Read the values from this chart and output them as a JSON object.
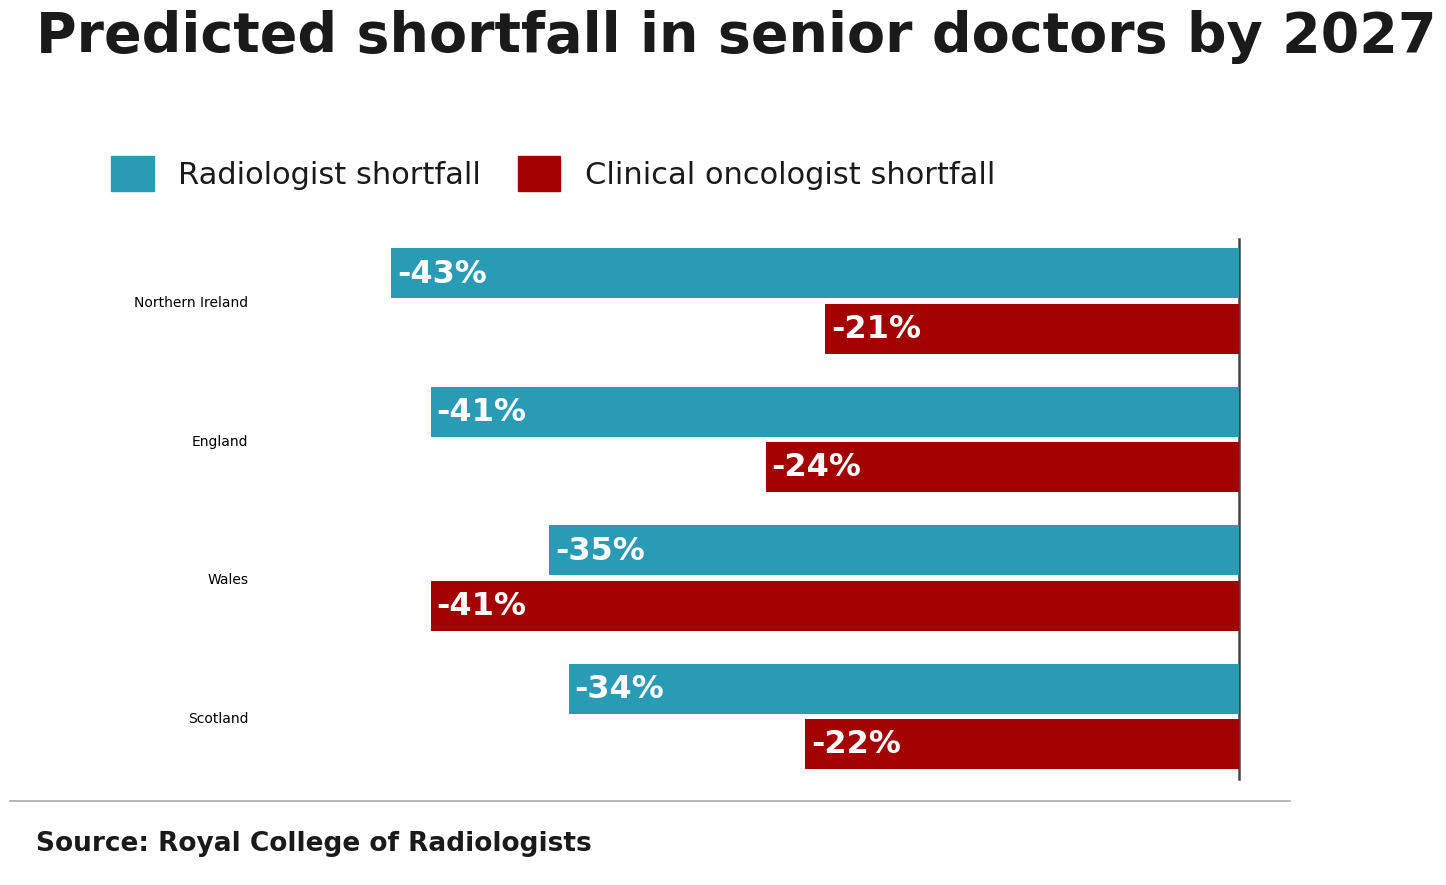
{
  "title": "Predicted shortfall in senior doctors by 2027",
  "categories": [
    "Northern Ireland",
    "England",
    "Wales",
    "Scotland"
  ],
  "radiologist_values": [
    -43,
    -41,
    -35,
    -34
  ],
  "oncologist_values": [
    -21,
    -24,
    -41,
    -22
  ],
  "radiologist_color": "#2a9bb5",
  "oncologist_color": "#a30000",
  "bar_label_color": "#ffffff",
  "background_color": "#ffffff",
  "legend_radio_label": "Radiologist shortfall",
  "legend_onco_label": "Clinical oncologist shortfall",
  "source_text": "Source: Royal College of Radiologists",
  "title_fontsize": 40,
  "tick_fontsize": 24,
  "legend_fontsize": 22,
  "bar_label_fontsize": 23,
  "source_fontsize": 19,
  "xlim": [
    -50,
    0
  ],
  "category_label_color": "#888888",
  "title_color": "#1a1a1a"
}
